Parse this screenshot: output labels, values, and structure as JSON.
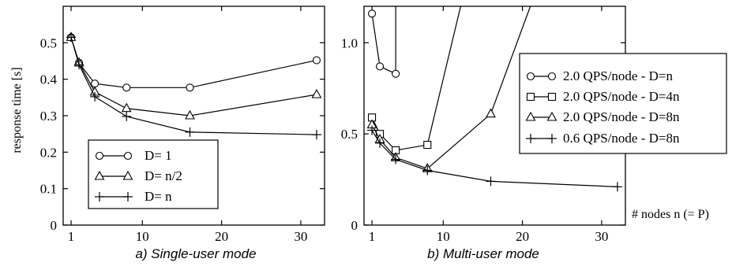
{
  "chart_data": [
    {
      "type": "line",
      "title": "a) Single-user mode",
      "xlabel": "",
      "ylabel": "response time [s]",
      "xlim": [
        0,
        33
      ],
      "ylim": [
        0,
        0.6
      ],
      "xticks": [
        "1",
        "10",
        "20",
        "30"
      ],
      "yticks": [
        "0",
        "0.1",
        "0.2",
        "0.3",
        "0.4",
        "0.5"
      ],
      "legend_position": "bottom-left",
      "series": [
        {
          "name": "D= 1",
          "marker": "circle",
          "x": [
            1,
            2,
            4,
            8,
            16,
            32
          ],
          "y": [
            0.515,
            0.445,
            0.388,
            0.377,
            0.377,
            0.452
          ]
        },
        {
          "name": "D= n/2",
          "marker": "triangle",
          "x": [
            1,
            2,
            4,
            8,
            16,
            32
          ],
          "y": [
            0.515,
            0.445,
            0.365,
            0.32,
            0.3,
            0.358
          ]
        },
        {
          "name": "D= n",
          "marker": "plus",
          "x": [
            1,
            2,
            4,
            8,
            16,
            32
          ],
          "y": [
            0.515,
            0.44,
            0.352,
            0.298,
            0.255,
            0.248
          ]
        }
      ]
    },
    {
      "type": "line",
      "title": "b) Multi-user mode",
      "xlabel": "# nodes n (= P)",
      "ylabel": "",
      "xlim": [
        0,
        33
      ],
      "ylim": [
        0,
        1.2
      ],
      "xticks": [
        "1",
        "10",
        "20",
        "30"
      ],
      "yticks": [
        "0",
        "0.5",
        "1.0"
      ],
      "legend_position": "right",
      "series": [
        {
          "name": "2.0 QPS/node - D=n",
          "marker": "circle",
          "x": [
            1,
            2,
            4
          ],
          "y": [
            1.16,
            0.87,
            0.83
          ],
          "tail": {
            "from_x": 4,
            "to_x": 4,
            "to_y": 1.2
          }
        },
        {
          "name": "2.0 QPS/node - D=4n",
          "marker": "square",
          "x": [
            1,
            2,
            4,
            8
          ],
          "y": [
            0.59,
            0.5,
            0.41,
            0.44
          ],
          "tail": {
            "from_x": 8,
            "to_x": 12.2,
            "to_y": 1.2
          }
        },
        {
          "name": "2.0 QPS/node - D=8n",
          "marker": "triangle",
          "x": [
            1,
            2,
            4,
            8,
            16
          ],
          "y": [
            0.55,
            0.47,
            0.37,
            0.31,
            0.61
          ],
          "tail": {
            "from_x": 16,
            "to_x": 21,
            "to_y": 1.2
          }
        },
        {
          "name": "0.6 QPS/node - D=8n",
          "marker": "plus",
          "x": [
            1,
            2,
            4,
            8,
            16,
            32
          ],
          "y": [
            0.52,
            0.45,
            0.36,
            0.3,
            0.24,
            0.21
          ]
        }
      ]
    }
  ]
}
